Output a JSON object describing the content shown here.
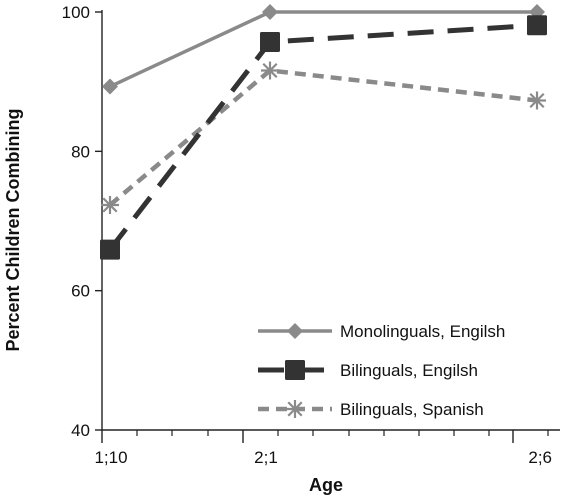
{
  "chart_data": {
    "type": "line",
    "title": "",
    "xlabel": "Age",
    "ylabel": "Percent Children Combining",
    "categories": [
      "1;10",
      "2;1",
      "2;6"
    ],
    "ylim": [
      40,
      100
    ],
    "yticks": [
      40,
      60,
      80,
      100
    ],
    "legend_position": "bottom-right",
    "grid": false,
    "series": [
      {
        "name": "Monolinguals, Engilsh",
        "values": [
          89.3,
          100,
          100
        ],
        "color": "#8a8a8a",
        "dash": "solid",
        "marker": "diamond"
      },
      {
        "name": "Bilinguals, Engilsh",
        "values": [
          65.9,
          95.7,
          98.1
        ],
        "color": "#333333",
        "dash": "long-dash",
        "marker": "square"
      },
      {
        "name": "Bilinguals, Spanish",
        "values": [
          72.3,
          91.6,
          87.3
        ],
        "color": "#8a8a8a",
        "dash": "short-dash",
        "marker": "asterisk"
      }
    ]
  }
}
